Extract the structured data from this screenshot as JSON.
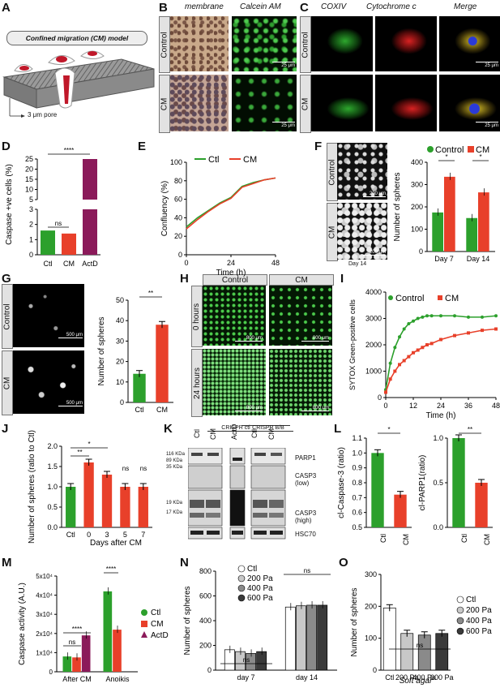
{
  "panels": {
    "A": {
      "letter": "A",
      "title": "Confined migration (CM) model",
      "pore": "3 μm pore"
    },
    "B": {
      "letter": "B",
      "cols": [
        "membrane",
        "Calcein AM"
      ],
      "rows": [
        "Control",
        "CM"
      ],
      "scale": "25 μm"
    },
    "C": {
      "letter": "C",
      "cols": [
        "COXIV",
        "Cytochrome c",
        "Merge"
      ],
      "rows": [
        "Control",
        "CM"
      ],
      "scale": "25 μm"
    },
    "D": {
      "letter": "D",
      "ylabel": "Caspase +ve cells (%)",
      "sig": [
        "ns",
        "****"
      ]
    },
    "E": {
      "letter": "E",
      "ylabel": "Confluency (%)",
      "xlabel": "Time (h)"
    },
    "F": {
      "letter": "F",
      "rows": [
        "Control",
        "CM"
      ],
      "scale": "200 μm",
      "day": "Day 14",
      "ylabel": "Number of spheres",
      "sig": [
        "*",
        "*"
      ]
    },
    "G": {
      "letter": "G",
      "rows": [
        "Control",
        "CM"
      ],
      "scale": "500 μm",
      "ylabel": "Number of spheres",
      "sig": [
        "**"
      ]
    },
    "H": {
      "letter": "H",
      "cols": [
        "Control",
        "CM"
      ],
      "rows": [
        "0 hours",
        "24 hours"
      ],
      "scale": "800 μm"
    },
    "I": {
      "letter": "I",
      "ylabel": "SYTOX Green-positive cells",
      "xlabel": "Time (h)"
    },
    "J": {
      "letter": "J",
      "ylabel": "Number of spheres (ratio to Ctl)",
      "xlabel": "Days after CM",
      "sig": [
        "**",
        "*",
        "ns",
        "ns"
      ]
    },
    "K": {
      "letter": "K",
      "groups": [
        "CRISPR ctl",
        "CRISPR B/B"
      ],
      "lanes": [
        "Ctl",
        "CM",
        "ActD",
        "Ctl",
        "CM"
      ],
      "markers": [
        "116 KDa",
        "89 KDa",
        "35 KDa",
        "19 KDa",
        "17 KDa"
      ],
      "proteins": [
        "PARP1",
        "CASP3 (low)",
        "CASP3 (high)",
        "HSC70"
      ]
    },
    "L": {
      "letter": "L",
      "sig": [
        "*",
        "**"
      ]
    },
    "M": {
      "letter": "M",
      "ylabel": "Caspase activity (A.U.)",
      "sig": [
        "ns",
        "****",
        "****"
      ]
    },
    "N": {
      "letter": "N",
      "ylabel": "Number of spheres",
      "sig": [
        "ns",
        "ns"
      ]
    },
    "O": {
      "letter": "O",
      "ylabel": "Number of spheres",
      "xlabel": "Soft agar",
      "sig": [
        "ns"
      ]
    }
  },
  "chart_data": [
    {
      "id": "D",
      "type": "bar",
      "categories": [
        "Ctl",
        "CM",
        "ActD"
      ],
      "values": [
        1.6,
        1.4,
        25
      ],
      "ylabel": "Caspase +ve cells (%)",
      "yticks": [
        0,
        1,
        2,
        3,
        5,
        10,
        15,
        20,
        25
      ],
      "colors": [
        "#2ca02c",
        "#e8402a",
        "#8b1a5a"
      ]
    },
    {
      "id": "E",
      "type": "line",
      "xlabel": "Time (h)",
      "ylabel": "Confluency (%)",
      "xlim": [
        0,
        48
      ],
      "ylim": [
        0,
        100
      ],
      "xticks": [
        0,
        24,
        48
      ],
      "yticks": [
        0,
        20,
        40,
        60,
        80,
        100
      ],
      "series": [
        {
          "name": "Ctl",
          "color": "#2ca02c",
          "x": [
            0,
            6,
            12,
            18,
            24,
            30,
            36,
            42,
            48
          ],
          "y": [
            30,
            40,
            48,
            56,
            62,
            74,
            78,
            81,
            83
          ]
        },
        {
          "name": "CM",
          "color": "#e8402a",
          "x": [
            0,
            6,
            12,
            18,
            24,
            30,
            36,
            42,
            48
          ],
          "y": [
            28,
            38,
            47,
            55,
            61,
            73,
            77,
            81,
            83
          ]
        }
      ]
    },
    {
      "id": "F",
      "type": "bar",
      "categories": [
        "Day 7",
        "Day 14"
      ],
      "ylim": [
        0,
        400
      ],
      "yticks": [
        0,
        100,
        200,
        300,
        400
      ],
      "series": [
        {
          "name": "Control",
          "color": "#2ca02c",
          "values": [
            175,
            150
          ]
        },
        {
          "name": "CM",
          "color": "#e8402a",
          "values": [
            335,
            265
          ]
        }
      ],
      "ylabel": "Number of spheres"
    },
    {
      "id": "G",
      "type": "bar",
      "categories": [
        "Ctl",
        "CM"
      ],
      "values": [
        14,
        38
      ],
      "ylim": [
        0,
        50
      ],
      "yticks": [
        0,
        10,
        20,
        30,
        40,
        50
      ],
      "ylabel": "Number of spheres",
      "colors": [
        "#2ca02c",
        "#e8402a"
      ]
    },
    {
      "id": "I",
      "type": "line",
      "xlabel": "Time (h)",
      "ylabel": "SYTOX Green-positive cells",
      "xlim": [
        0,
        48
      ],
      "ylim": [
        0,
        4000
      ],
      "xticks": [
        0,
        12,
        24,
        36,
        48
      ],
      "yticks": [
        0,
        1000,
        2000,
        3000,
        4000
      ],
      "series": [
        {
          "name": "Control",
          "color": "#2ca02c",
          "x": [
            0,
            2,
            4,
            6,
            8,
            10,
            12,
            14,
            16,
            18,
            20,
            24,
            30,
            36,
            42,
            48
          ],
          "y": [
            300,
            1300,
            1900,
            2300,
            2600,
            2800,
            2900,
            3000,
            3050,
            3100,
            3100,
            3100,
            3100,
            3050,
            3050,
            3100
          ]
        },
        {
          "name": "CM",
          "color": "#e8402a",
          "x": [
            0,
            2,
            4,
            6,
            8,
            10,
            12,
            14,
            16,
            18,
            20,
            24,
            30,
            36,
            42,
            48
          ],
          "y": [
            200,
            700,
            1000,
            1250,
            1400,
            1550,
            1700,
            1800,
            1900,
            2000,
            2050,
            2200,
            2350,
            2450,
            2550,
            2600
          ]
        }
      ]
    },
    {
      "id": "J",
      "type": "bar",
      "categories": [
        "Ctl",
        "0",
        "3",
        "5",
        "7"
      ],
      "values": [
        1.0,
        1.6,
        1.3,
        1.0,
        1.0
      ],
      "ylim": [
        0,
        2
      ],
      "yticks": [
        0,
        0.5,
        1.0,
        1.5,
        2.0
      ],
      "colors": [
        "#2ca02c",
        "#e8402a",
        "#e8402a",
        "#e8402a",
        "#e8402a"
      ],
      "xlabel": "Days after CM",
      "ylabel": "Number of spheres (ratio to Ctl)"
    },
    {
      "id": "L1",
      "type": "bar",
      "categories": [
        "Ctl",
        "CM"
      ],
      "values": [
        1.0,
        0.72
      ],
      "ylim": [
        0.5,
        1.1
      ],
      "yticks": [
        0.5,
        0.6,
        0.7,
        0.8,
        0.9,
        1.0,
        1.1
      ],
      "ylabel": "cl-Caspase-3 (ratio)",
      "colors": [
        "#2ca02c",
        "#e8402a"
      ]
    },
    {
      "id": "L2",
      "type": "bar",
      "categories": [
        "Ctl",
        "CM"
      ],
      "values": [
        1.0,
        0.5
      ],
      "ylim": [
        0,
        1.0
      ],
      "yticks": [
        0,
        0.5,
        1.0
      ],
      "ylabel": "cl-PARP1(ratio)",
      "colors": [
        "#2ca02c",
        "#e8402a"
      ]
    },
    {
      "id": "M",
      "type": "bar",
      "categories": [
        "After CM",
        "Anoikis"
      ],
      "yticks_label": [
        "0",
        "1x10⁴",
        "2x10⁴",
        "3x10⁴",
        "4x10⁴",
        "5x10⁴"
      ],
      "ylim": [
        0,
        50000
      ],
      "series": [
        {
          "name": "Ctl",
          "color": "#2ca02c",
          "values": [
            8000,
            42000
          ]
        },
        {
          "name": "CM",
          "color": "#e8402a",
          "values": [
            7500,
            22000
          ]
        },
        {
          "name": "ActD",
          "color": "#8b1a5a",
          "values": [
            19000,
            null
          ]
        }
      ],
      "ylabel": "Caspase activity (A.U.)"
    },
    {
      "id": "N",
      "type": "bar",
      "categories": [
        "day 7",
        "day 14"
      ],
      "ylim": [
        0,
        800
      ],
      "yticks": [
        0,
        200,
        400,
        600,
        800
      ],
      "series": [
        {
          "name": "Ctl",
          "color": "#ffffff",
          "values": [
            165,
            510
          ]
        },
        {
          "name": "200 Pa",
          "color": "#c8c8c8",
          "values": [
            150,
            520
          ]
        },
        {
          "name": "400 Pa",
          "color": "#8a8a8a",
          "values": [
            135,
            525
          ]
        },
        {
          "name": "600 Pa",
          "color": "#3a3a3a",
          "values": [
            150,
            525
          ]
        }
      ],
      "ylabel": "Number of spheres"
    },
    {
      "id": "O",
      "type": "bar",
      "categories": [
        "Ctl",
        "200 Pa",
        "400 Pa",
        "600 Pa"
      ],
      "values": [
        195,
        115,
        110,
        115
      ],
      "ylim": [
        0,
        300
      ],
      "yticks": [
        0,
        100,
        200,
        300
      ],
      "colors": [
        "#ffffff",
        "#c8c8c8",
        "#8a8a8a",
        "#3a3a3a"
      ],
      "xlabel": "Soft agar",
      "ylabel": "Number of spheres"
    }
  ]
}
